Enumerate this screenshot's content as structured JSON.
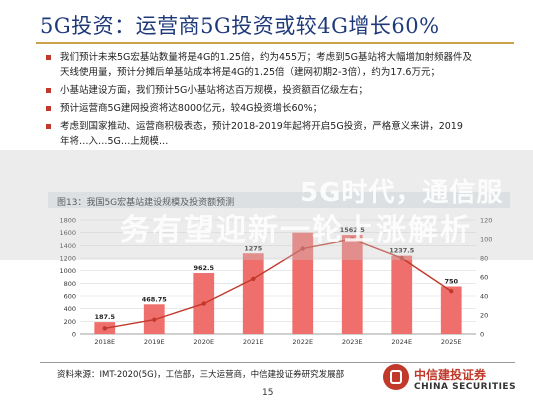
{
  "slide": {
    "title": "5G投资：运营商5G投资或较4G增长60%",
    "bullets": [
      [
        "我们预计未来5G宏基站数量将是4G的1.25倍，约为455万；考虑到5G基站将大幅增加射频器件及",
        "天线使用量，预计分摊后单基站成本将是4G的1.25倍（建网初期2-3倍），约为17.6万元；"
      ],
      [
        "小基站建设方面，我们预计5G小基站将达百万规模，投资额百亿级左右；"
      ],
      [
        "预计运营商5G建网投资将达8000亿元，较4G投资增长60%；"
      ],
      [
        "考虑到国家推动、运营商积极表态，预计2018-2019年起将开启5G投资，严格意义来讲，2019",
        "年将…入…5G…上规模…"
      ]
    ],
    "chart_caption": "图13：我国5G宏基站建设规模及投资额预测",
    "source": "资料来源：IMT-2020(5G)，工信部，三大运营商，中信建投证券研究发展部",
    "page_number": "15",
    "logo_cn": "中信建投证券",
    "logo_en": "CHINA SECURITIES"
  },
  "watermark": {
    "line1": "5G时代，通信服",
    "line2": "务有望迎新一轮上涨解析"
  },
  "chart_data": {
    "type": "bar",
    "categories": [
      "2018E",
      "2019E",
      "2020E",
      "2021E",
      "2022E",
      "2023E",
      "2024E",
      "2025E"
    ],
    "bar_series": {
      "values": [
        187.5,
        468.75,
        962.5,
        1275,
        1600,
        1562.5,
        1237.5,
        750
      ],
      "labels": [
        "187.5",
        "468.75",
        "962.5",
        "1275",
        "",
        "1562.5",
        "1237.5",
        "750"
      ],
      "color": "#ef6f6c"
    },
    "line_series": {
      "values": [
        6,
        15,
        32,
        58,
        90,
        100,
        80,
        45
      ],
      "color": "#c0392b"
    },
    "y_left": {
      "min": 0,
      "max": 1800,
      "ticks": [
        0,
        200,
        400,
        600,
        800,
        1000,
        1200,
        1400,
        1600,
        1800
      ]
    },
    "y_right": {
      "min": 0,
      "max": 120,
      "ticks": [
        0,
        20,
        40,
        60,
        80,
        100,
        120
      ]
    },
    "grid": true
  }
}
